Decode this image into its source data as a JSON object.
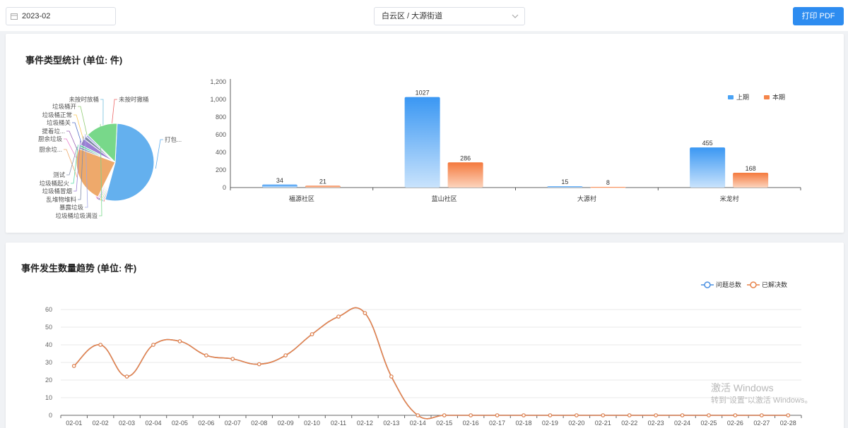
{
  "toolbar": {
    "month_value": "2023-02",
    "region_value": "白云区 / 大源街道",
    "print_label": "打印 PDF"
  },
  "type_stats": {
    "title": "事件类型统计 (单位: 件)"
  },
  "trend": {
    "title": "事件发生数量趋势 (单位: 件)"
  },
  "watermark": {
    "line1": "激活 Windows",
    "line2": "转到\"设置\"以激活 Windows。"
  },
  "colors": {
    "primary_button": "#2d8cf0",
    "series_prev": "#4aa3f5",
    "series_curr": "#f5854a",
    "line_total": "#4a90e2",
    "line_resolved": "#e8834a"
  },
  "chart_data": [
    {
      "type": "pie",
      "labels": [
        "打包...",
        "未按时撤桶",
        "未按时放桶",
        "垃圾桶开",
        "垃圾桶正常",
        "垃圾桶关",
        "提着垃...",
        "厨余垃圾",
        "厨余垃...",
        "测试",
        "垃圾桶起火",
        "垃圾桶冒烟",
        "乱堆物堆料",
        "暴露垃圾",
        "垃圾桶垃圾满溢"
      ],
      "values": [
        48,
        0.4,
        0.4,
        0.4,
        0.4,
        0.4,
        0.4,
        0.4,
        21,
        0.8,
        0.8,
        2.5,
        1.2,
        0.8,
        12
      ],
      "colors": [
        "#64b0ee",
        "#ee6666",
        "#73c0de",
        "#91cc75",
        "#fac858",
        "#5470c6",
        "#9a60b4",
        "#ea7ccc",
        "#eea96b",
        "#8d98b3",
        "#5ad8a6",
        "#9c7fd4",
        "#7e8aa8",
        "#a0a7e6",
        "#78d88a"
      ]
    },
    {
      "type": "bar",
      "categories": [
        "福源社区",
        "蓝山社区",
        "大源村",
        "米龙村"
      ],
      "series": [
        {
          "name": "上期",
          "values": [
            34,
            1027,
            15,
            455
          ]
        },
        {
          "name": "本期",
          "values": [
            21,
            286,
            8,
            168
          ]
        }
      ],
      "ylim": [
        0,
        1200
      ],
      "yticks": [
        "0",
        "200",
        "400",
        "600",
        "800",
        "1,000",
        "1,200"
      ],
      "legend": "top-right"
    },
    {
      "type": "line",
      "x": [
        "02-01",
        "02-02",
        "02-03",
        "02-04",
        "02-05",
        "02-06",
        "02-07",
        "02-08",
        "02-09",
        "02-10",
        "02-11",
        "02-12",
        "02-13",
        "02-14",
        "02-15",
        "02-16",
        "02-17",
        "02-18",
        "02-19",
        "02-20",
        "02-21",
        "02-22",
        "02-23",
        "02-24",
        "02-25",
        "02-26",
        "02-27",
        "02-28"
      ],
      "series": [
        {
          "name": "问题总数",
          "values": [
            28,
            40,
            22,
            40,
            42,
            34,
            32,
            29,
            34,
            46,
            56,
            58,
            22,
            0,
            0,
            0,
            0,
            0,
            0,
            0,
            0,
            0,
            0,
            0,
            0,
            0,
            0,
            0
          ]
        },
        {
          "name": "已解决数",
          "values": [
            28,
            40,
            22,
            40,
            42,
            34,
            32,
            29,
            34,
            46,
            56,
            58,
            22,
            0,
            0,
            0,
            0,
            0,
            0,
            0,
            0,
            0,
            0,
            0,
            0,
            0,
            0,
            0
          ]
        }
      ],
      "ylim": [
        0,
        60
      ],
      "yticks": [
        "0",
        "10",
        "20",
        "30",
        "40",
        "50",
        "60"
      ],
      "legend": "top-right"
    }
  ]
}
